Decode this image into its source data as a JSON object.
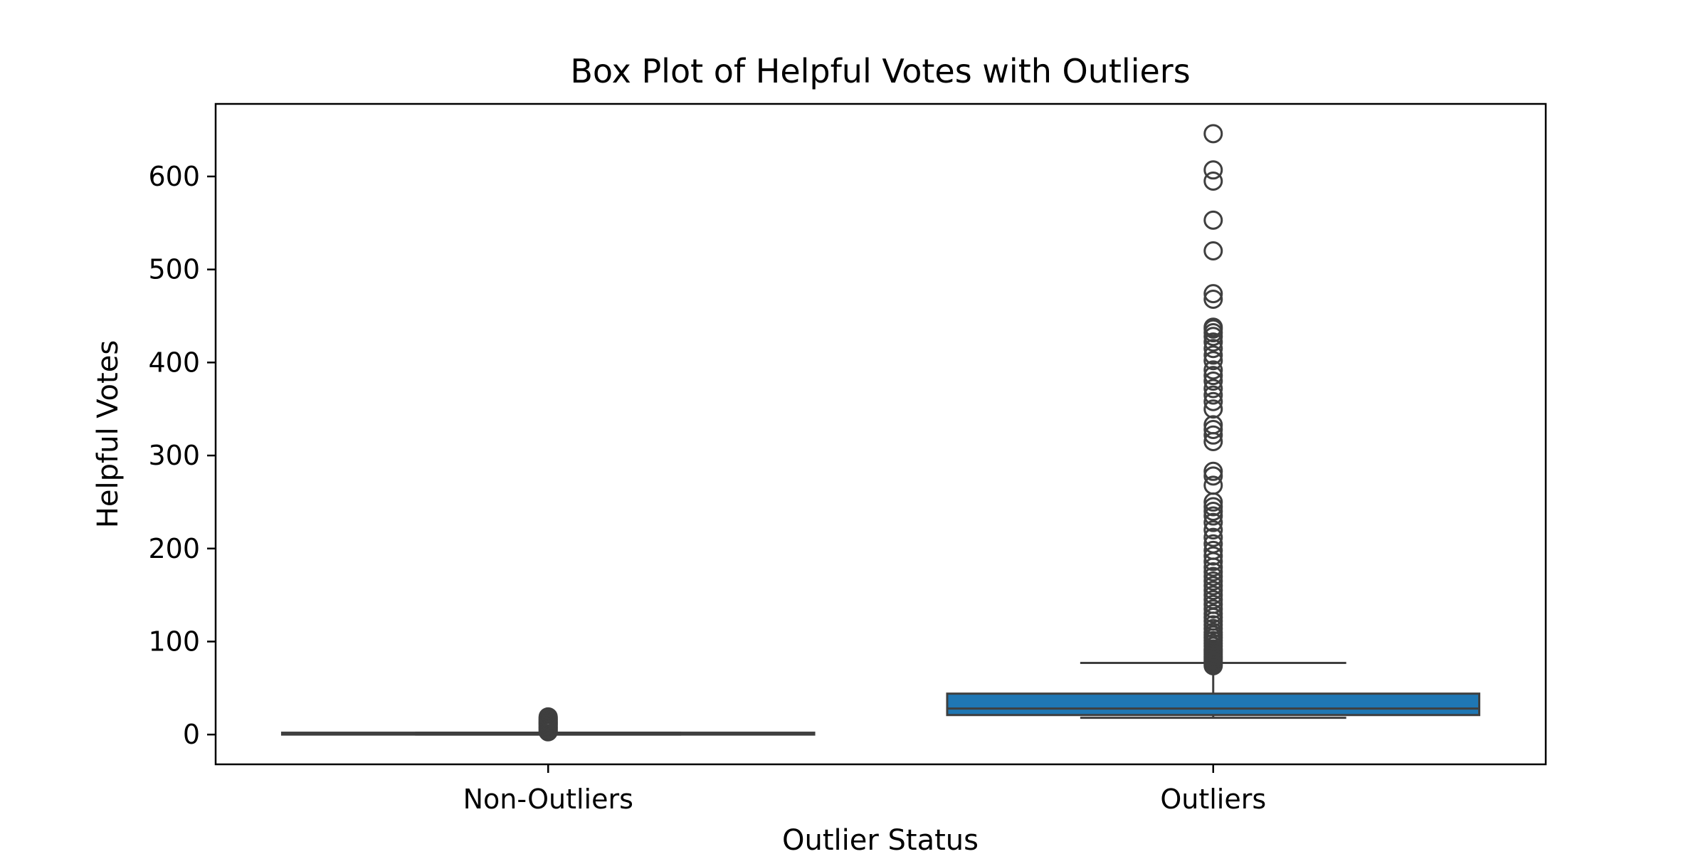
{
  "chart_data": {
    "type": "box",
    "title": "Box Plot of Helpful Votes with Outliers",
    "xlabel": "Outlier Status",
    "ylabel": "Helpful Votes",
    "categories": [
      "Non-Outliers",
      "Outliers"
    ],
    "ylim": [
      -32,
      678
    ],
    "yticks": [
      0,
      100,
      200,
      300,
      400,
      500,
      600
    ],
    "grid": false,
    "boxes": [
      {
        "category": "Non-Outliers",
        "whisker_low": 0,
        "q1": 0,
        "median": 1,
        "q3": 2,
        "whisker_high": 2,
        "color": "#1f77b4",
        "outliers": [
          3,
          4,
          5,
          6,
          7,
          8,
          9,
          10,
          11,
          12,
          13,
          14,
          15,
          16,
          17,
          18,
          19
        ]
      },
      {
        "category": "Outliers",
        "whisker_low": 18,
        "q1": 21,
        "median": 28,
        "q3": 44,
        "whisker_high": 77,
        "color": "#1f77b4",
        "outliers": [
          74,
          76,
          78,
          80,
          82,
          84,
          86,
          88,
          90,
          92,
          95,
          98,
          101,
          104,
          107,
          110,
          114,
          118,
          122,
          126,
          130,
          135,
          140,
          145,
          150,
          155,
          160,
          165,
          170,
          175,
          180,
          186,
          192,
          198,
          205,
          212,
          220,
          228,
          235,
          240,
          245,
          250,
          268,
          278,
          283,
          315,
          322,
          328,
          333,
          350,
          358,
          365,
          372,
          380,
          386,
          392,
          402,
          408,
          415,
          422,
          428,
          432,
          436,
          438,
          468,
          474,
          520,
          553,
          595,
          607,
          646
        ]
      }
    ]
  }
}
